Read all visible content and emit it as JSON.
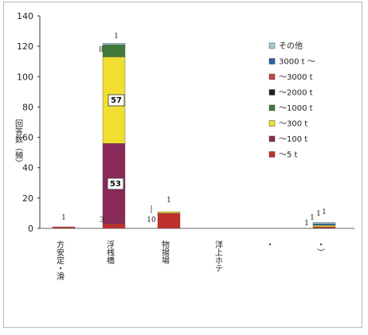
{
  "chart_data": {
    "type": "bar",
    "stacked": true,
    "ylabel": "回答数（頻）",
    "ylim": [
      0,
      140
    ],
    "yticks": [
      0,
      20,
      40,
      60,
      80,
      100,
      120,
      140
    ],
    "grid": false,
    "legend_position": "right",
    "categories": [
      "方安定・滑",
      "浮桟橋",
      "物揚場",
      "洋上ホテ",
      "・",
      "・）"
    ],
    "series": [
      {
        "name": "〜5 t",
        "color": "#c0302a",
        "values": [
          1,
          3,
          10,
          0,
          0,
          1
        ]
      },
      {
        "name": "〜100 t",
        "color": "#8a2a5a",
        "values": [
          0,
          53,
          0,
          0,
          0,
          0
        ]
      },
      {
        "name": "〜300 t",
        "color": "#f0de30",
        "values": [
          0,
          57,
          1,
          0,
          0,
          1
        ]
      },
      {
        "name": "〜1000 t",
        "color": "#3f7a3a",
        "values": [
          0,
          8,
          0,
          0,
          0,
          0
        ]
      },
      {
        "name": "〜2000 t",
        "color": "#222222",
        "values": [
          0,
          0,
          0,
          0,
          0,
          0
        ]
      },
      {
        "name": "〜3000 t",
        "color": "#c8463a",
        "values": [
          0,
          0,
          0,
          0,
          0,
          0
        ]
      },
      {
        "name": "3000 t 〜",
        "color": "#2f5fa8",
        "values": [
          0,
          0,
          0,
          0,
          0,
          1
        ]
      },
      {
        "name": "その他",
        "color": "#a9c8d8",
        "values": [
          0,
          1,
          0,
          0,
          0,
          1
        ]
      }
    ],
    "data_labels": [
      {
        "category": 0,
        "text": "1"
      },
      {
        "category": 1,
        "text": "3"
      },
      {
        "category": 1,
        "text": "53"
      },
      {
        "category": 1,
        "text": "57"
      },
      {
        "category": 1,
        "text": "8"
      },
      {
        "category": 1,
        "text": "1"
      },
      {
        "category": 2,
        "text": "10"
      },
      {
        "category": 2,
        "text": "1"
      },
      {
        "category": 5,
        "text": "1"
      },
      {
        "category": 5,
        "text": "1"
      },
      {
        "category": 5,
        "text": "1"
      },
      {
        "category": 5,
        "text": "1"
      }
    ]
  }
}
